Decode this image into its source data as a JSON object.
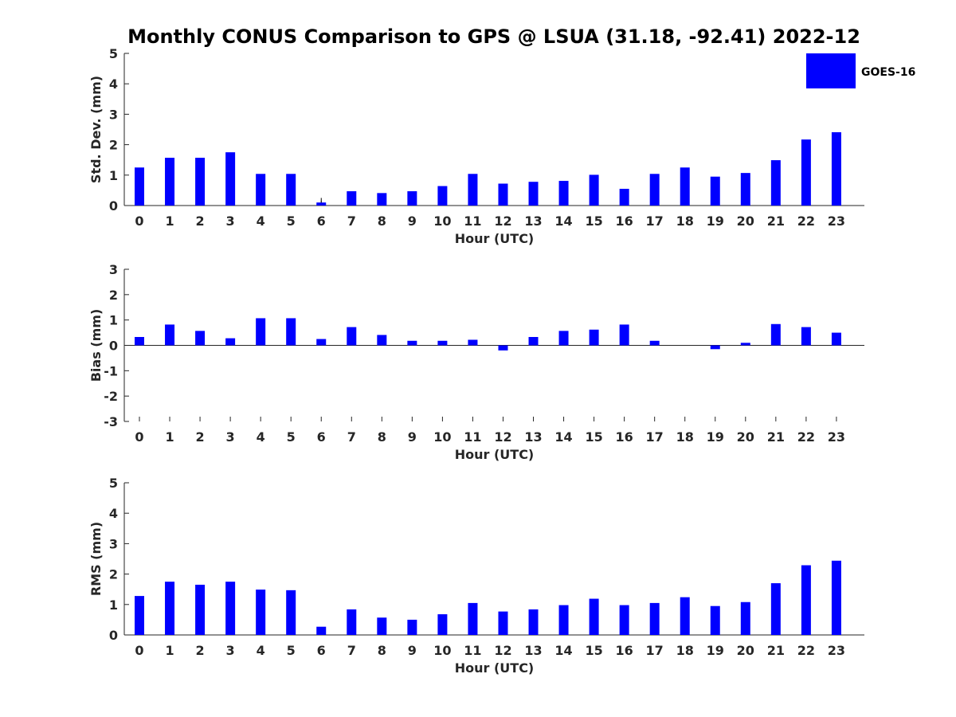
{
  "title": "Monthly CONUS Comparison to GPS @ LSUA (31.18, -92.41) 2022-12",
  "colors": {
    "bar": "#0000ff",
    "axis": "#262626",
    "title": "#000000"
  },
  "legend": {
    "label": "GOES-16",
    "position": "top-right"
  },
  "chart_data": [
    {
      "type": "bar",
      "series": [
        {
          "name": "GOES-16",
          "values": [
            1.25,
            1.57,
            1.57,
            1.75,
            1.04,
            1.04,
            0.1,
            0.47,
            0.41,
            0.47,
            0.64,
            1.04,
            0.72,
            0.78,
            0.81,
            1.01,
            0.55,
            1.04,
            1.25,
            0.95,
            1.07,
            1.49,
            2.17,
            2.41
          ]
        }
      ],
      "categories": [
        "0",
        "1",
        "2",
        "3",
        "4",
        "5",
        "6",
        "7",
        "8",
        "9",
        "10",
        "11",
        "12",
        "13",
        "14",
        "15",
        "16",
        "17",
        "18",
        "19",
        "20",
        "21",
        "22",
        "23"
      ],
      "xlabel": "Hour (UTC)",
      "ylabel": "Std. Dev. (mm)",
      "ylim": [
        0,
        5
      ],
      "yticks": [
        "0",
        "1",
        "2",
        "3",
        "4",
        "5"
      ],
      "error_bars": [
        {
          "category": "6",
          "upper": 0.25
        }
      ]
    },
    {
      "type": "bar",
      "series": [
        {
          "name": "GOES-16",
          "values": [
            0.33,
            0.82,
            0.57,
            0.28,
            1.07,
            1.07,
            0.25,
            0.72,
            0.41,
            0.18,
            0.18,
            0.22,
            -0.2,
            0.33,
            0.57,
            0.62,
            0.82,
            0.18,
            0.0,
            -0.15,
            0.1,
            0.84,
            0.72,
            0.5
          ]
        }
      ],
      "categories": [
        "0",
        "1",
        "2",
        "3",
        "4",
        "5",
        "6",
        "7",
        "8",
        "9",
        "10",
        "11",
        "12",
        "13",
        "14",
        "15",
        "16",
        "17",
        "18",
        "19",
        "20",
        "21",
        "22",
        "23"
      ],
      "xlabel": "Hour (UTC)",
      "ylabel": "Bias (mm)",
      "ylim": [
        -3,
        3
      ],
      "yticks": [
        "-3",
        "-2",
        "-1",
        "0",
        "1",
        "2",
        "3"
      ]
    },
    {
      "type": "bar",
      "series": [
        {
          "name": "GOES-16",
          "values": [
            1.28,
            1.75,
            1.65,
            1.75,
            1.49,
            1.47,
            0.27,
            0.84,
            0.57,
            0.5,
            0.68,
            1.05,
            0.77,
            0.84,
            0.98,
            1.19,
            0.98,
            1.05,
            1.24,
            0.95,
            1.08,
            1.7,
            2.29,
            2.44
          ]
        }
      ],
      "categories": [
        "0",
        "1",
        "2",
        "3",
        "4",
        "5",
        "6",
        "7",
        "8",
        "9",
        "10",
        "11",
        "12",
        "13",
        "14",
        "15",
        "16",
        "17",
        "18",
        "19",
        "20",
        "21",
        "22",
        "23"
      ],
      "xlabel": "Hour (UTC)",
      "ylabel": "RMS (mm)",
      "ylim": [
        0,
        5
      ],
      "yticks": [
        "0",
        "1",
        "2",
        "3",
        "4",
        "5"
      ]
    }
  ]
}
